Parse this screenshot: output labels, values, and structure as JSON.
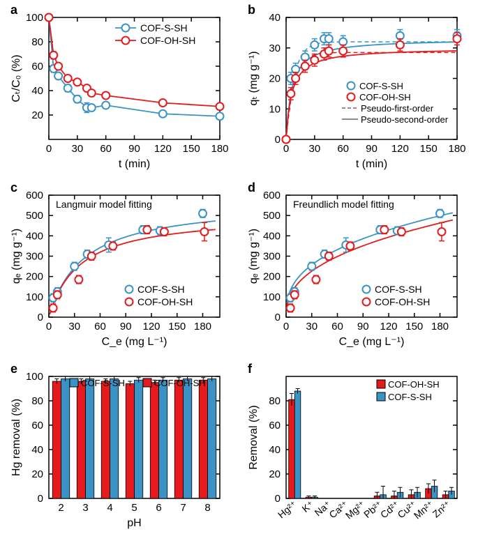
{
  "colors": {
    "blue": "#3a92c5",
    "red": "#e41a1c",
    "axis": "#000000",
    "grid": "#ffffff",
    "bg": "#ffffff"
  },
  "panel_label_fontsize": 18,
  "a": {
    "label": "a",
    "xlabel": "t (min)",
    "ylabel": "C_t/C_0 (%)",
    "xlim": [
      0,
      180
    ],
    "ylim": [
      0,
      100
    ],
    "xticks": [
      0,
      30,
      60,
      90,
      120,
      150,
      180
    ],
    "yticks": [
      20,
      40,
      60,
      80,
      100
    ],
    "series": [
      {
        "name": "COF-S-SH",
        "color": "#3a92c5",
        "x": [
          0,
          5,
          10,
          20,
          30,
          40,
          45,
          60,
          120,
          180
        ],
        "y": [
          100,
          58,
          52,
          42,
          33,
          26,
          26,
          28,
          21,
          19
        ],
        "err": [
          2,
          3,
          2,
          3,
          3,
          4,
          2,
          2,
          2,
          2
        ]
      },
      {
        "name": "COF-OH-SH",
        "color": "#e41a1c",
        "x": [
          0,
          5,
          10,
          20,
          30,
          40,
          45,
          60,
          120,
          180
        ],
        "y": [
          100,
          69,
          60,
          50,
          47,
          42,
          38,
          36,
          30,
          27
        ],
        "err": [
          2,
          3,
          2,
          2,
          2,
          2,
          2,
          2,
          2,
          2
        ]
      }
    ],
    "legend": [
      "COF-S-SH",
      "COF-OH-SH"
    ]
  },
  "b": {
    "label": "b",
    "xlabel": "t (min)",
    "ylabel": "q_t (mg g⁻¹)",
    "xlim": [
      0,
      180
    ],
    "ylim": [
      0,
      40
    ],
    "xticks": [
      0,
      30,
      60,
      90,
      120,
      150,
      180
    ],
    "yticks": [
      0,
      10,
      20,
      30,
      40
    ],
    "series": [
      {
        "name": "COF-S-SH",
        "color": "#3a92c5",
        "x": [
          0,
          5,
          10,
          20,
          30,
          40,
          45,
          60,
          120,
          180
        ],
        "y": [
          0,
          20,
          23,
          27,
          31,
          33,
          33,
          32,
          34,
          34
        ],
        "err": [
          0,
          2,
          2,
          2,
          2,
          2,
          2,
          2,
          2,
          2
        ],
        "dash_asymp": 32,
        "solid_asymp": 33
      },
      {
        "name": "COF-OH-SH",
        "color": "#e41a1c",
        "x": [
          0,
          5,
          10,
          20,
          30,
          40,
          45,
          60,
          120,
          180
        ],
        "y": [
          0,
          15,
          20,
          24,
          26,
          28,
          29,
          29,
          31,
          33
        ],
        "err": [
          0,
          2,
          2,
          2,
          2,
          2,
          2,
          2,
          2,
          2
        ],
        "dash_asymp": 28.5,
        "solid_asymp": 30
      }
    ],
    "legend": [
      "COF-S-SH",
      "COF-OH-SH",
      "Pseudo-first-order",
      "Pseudo-second-order"
    ]
  },
  "c": {
    "label": "c",
    "title": "Langmuir model fitting",
    "xlabel": "C_e (mg L⁻¹)",
    "ylabel": "q_e (mg g⁻¹)",
    "xlim": [
      0,
      200
    ],
    "ylim": [
      0,
      600
    ],
    "xticks": [
      0,
      30,
      60,
      90,
      120,
      150,
      180
    ],
    "yticks": [
      0,
      100,
      200,
      300,
      400,
      500,
      600
    ],
    "series": [
      {
        "name": "COF-S-SH",
        "color": "#3a92c5",
        "x": [
          5,
          10,
          30,
          45,
          70,
          110,
          130,
          180
        ],
        "y": [
          95,
          125,
          250,
          310,
          355,
          430,
          425,
          510
        ],
        "err": [
          20,
          20,
          20,
          20,
          35,
          20,
          20,
          20
        ]
      },
      {
        "name": "COF-OH-SH",
        "color": "#e41a1c",
        "x": [
          5,
          10,
          35,
          50,
          75,
          115,
          135,
          182
        ],
        "y": [
          45,
          110,
          185,
          300,
          350,
          430,
          420,
          420
        ],
        "err": [
          20,
          20,
          20,
          20,
          20,
          20,
          20,
          45
        ]
      }
    ],
    "legend": [
      "COF-S-SH",
      "COF-OH-SH"
    ],
    "fits": [
      {
        "color": "#3a92c5",
        "qmax": 570,
        "k": 0.025
      },
      {
        "color": "#e41a1c",
        "qmax": 510,
        "k": 0.028
      }
    ]
  },
  "d": {
    "label": "d",
    "title": "Freundlich model fitting",
    "xlabel": "C_e (mg L⁻¹)",
    "ylabel": "q_e (mg g⁻¹)",
    "xlim": [
      0,
      200
    ],
    "ylim": [
      0,
      600
    ],
    "xticks": [
      0,
      30,
      60,
      90,
      120,
      150,
      180
    ],
    "yticks": [
      0,
      100,
      200,
      300,
      400,
      500,
      600
    ],
    "series": [
      {
        "name": "COF-S-SH",
        "color": "#3a92c5",
        "x": [
          5,
          10,
          30,
          45,
          70,
          110,
          130,
          180
        ],
        "y": [
          95,
          125,
          250,
          310,
          355,
          430,
          425,
          510
        ],
        "err": [
          20,
          20,
          20,
          20,
          35,
          20,
          20,
          20
        ]
      },
      {
        "name": "COF-OH-SH",
        "color": "#e41a1c",
        "x": [
          5,
          10,
          35,
          50,
          75,
          115,
          135,
          182
        ],
        "y": [
          45,
          110,
          185,
          300,
          350,
          430,
          420,
          420
        ],
        "err": [
          20,
          20,
          20,
          20,
          20,
          20,
          20,
          45
        ]
      }
    ],
    "legend": [
      "COF-S-SH",
      "COF-OH-SH"
    ],
    "fits": [
      {
        "color": "#3a92c5",
        "kf": 73,
        "n": 0.37
      },
      {
        "color": "#e41a1c",
        "kf": 58,
        "n": 0.4
      }
    ]
  },
  "e": {
    "label": "e",
    "xlabel": "pH",
    "ylabel": "Hg removal (%)",
    "xcats": [
      "2",
      "3",
      "4",
      "5",
      "6",
      "7",
      "8"
    ],
    "ylim": [
      0,
      100
    ],
    "yticks": [
      0,
      20,
      40,
      60,
      80,
      100
    ],
    "bars": {
      "COF-S-SH": {
        "color": "#3a92c5",
        "vals": [
          98,
          98,
          98,
          97,
          97,
          98,
          98
        ],
        "err": [
          2,
          2,
          2,
          2,
          2,
          2,
          2
        ]
      },
      "COF-OH-SH": {
        "color": "#e41a1c",
        "vals": [
          96,
          96,
          96,
          94,
          95,
          97,
          97
        ],
        "err": [
          2,
          2,
          2,
          2,
          2,
          2,
          2
        ]
      }
    },
    "legend": [
      "COF-S-SH",
      "COF-OH-SH"
    ]
  },
  "f": {
    "label": "f",
    "xlabel": "",
    "ylabel": "Removal (%)",
    "xcats": [
      "Hg²⁺",
      "K⁺",
      "Na⁺",
      "Ca²⁺",
      "Mg²⁺",
      "Pb²⁺",
      "Cd²⁺",
      "Cu²⁺",
      "Mn²⁺",
      "Zn²⁺"
    ],
    "ylim": [
      0,
      100
    ],
    "yticks": [
      0,
      20,
      40,
      60,
      80
    ],
    "bars": {
      "COF-OH-SH": {
        "color": "#e41a1c",
        "vals": [
          81,
          1,
          0,
          0,
          0,
          2,
          2,
          3,
          8,
          3
        ],
        "err": [
          5,
          1,
          0,
          0,
          0,
          3,
          4,
          4,
          4,
          3
        ]
      },
      "COF-S-SH": {
        "color": "#3a92c5",
        "vals": [
          88,
          1,
          0,
          0,
          0,
          3,
          5,
          5,
          10,
          6
        ],
        "err": [
          2,
          1,
          0,
          0,
          0,
          7,
          4,
          4,
          5,
          3
        ]
      }
    },
    "legend": [
      "COF-OH-SH",
      "COF-S-SH"
    ]
  }
}
